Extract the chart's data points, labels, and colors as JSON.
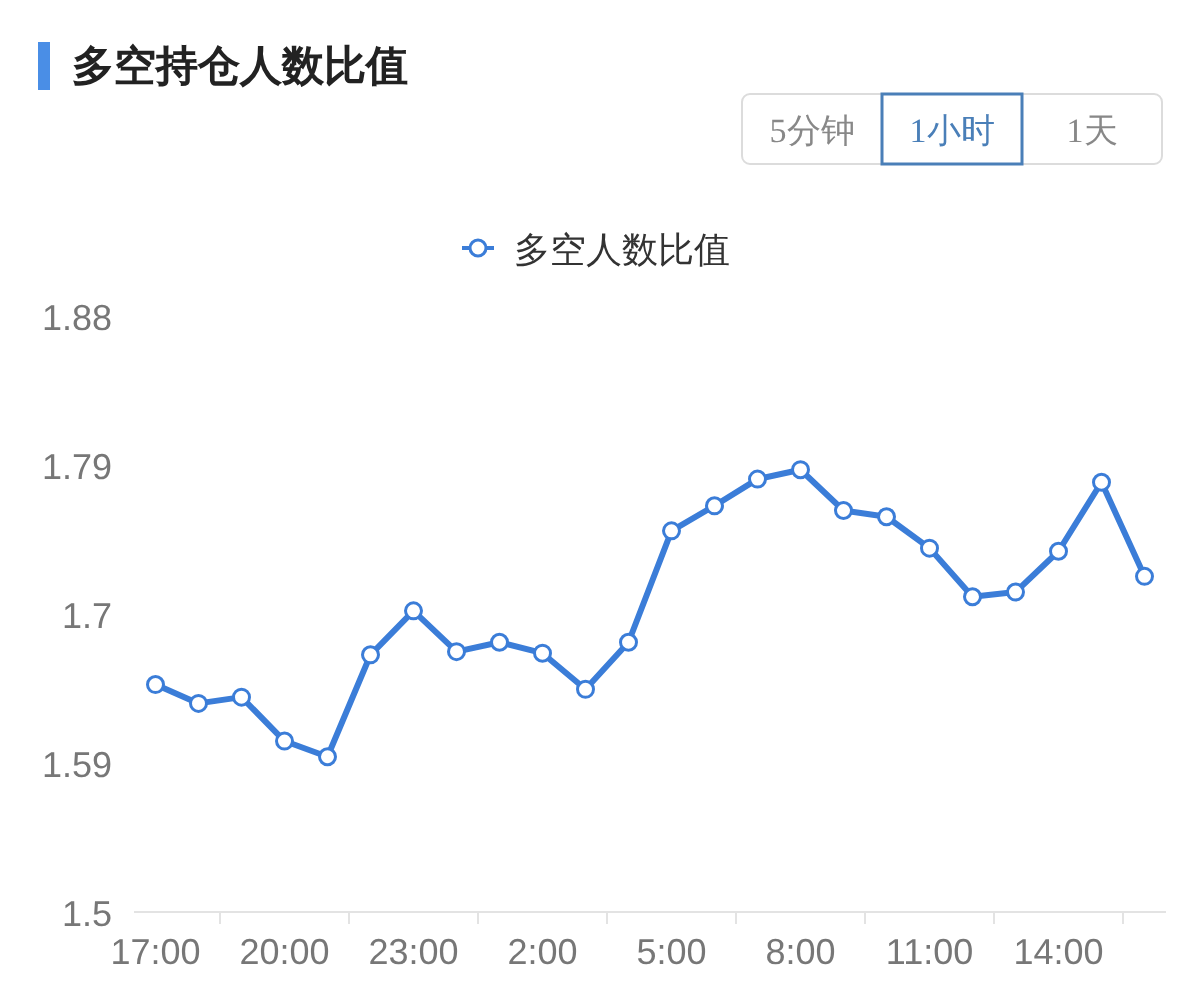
{
  "chart_data": {
    "type": "line",
    "title": "多空持仓人数比值",
    "annotations": [
      "5分钟",
      "1小时",
      "1天"
    ],
    "categories": [
      "17:00",
      null,
      null,
      "20:00",
      null,
      null,
      "23:00",
      null,
      null,
      "2:00",
      null,
      null,
      "5:00",
      null,
      null,
      "8:00",
      null,
      null,
      "11:00",
      null,
      null,
      "14:00",
      null,
      null
    ],
    "series": [
      {
        "name": "多空人数比值",
        "color": "#3b7dd8",
        "values": [
          1.645,
          1.633,
          1.637,
          1.609,
          1.599,
          1.664,
          1.692,
          1.666,
          1.672,
          1.665,
          1.642,
          1.672,
          1.743,
          1.759,
          1.776,
          1.782,
          1.756,
          1.752,
          1.732,
          1.701,
          1.704,
          1.73,
          1.774,
          1.714
        ]
      }
    ],
    "ylim": [
      1.5,
      1.88
    ],
    "yticks": [
      1.5,
      {
        "value": 1.595,
        "label": "1.59"
      },
      {
        "value": 1.69,
        "label": "1.7"
      },
      {
        "value": 1.785,
        "label": "1.79"
      },
      1.88
    ],
    "grid": false,
    "legend": "top",
    "marker": "circle",
    "line_style": "solid"
  }
}
